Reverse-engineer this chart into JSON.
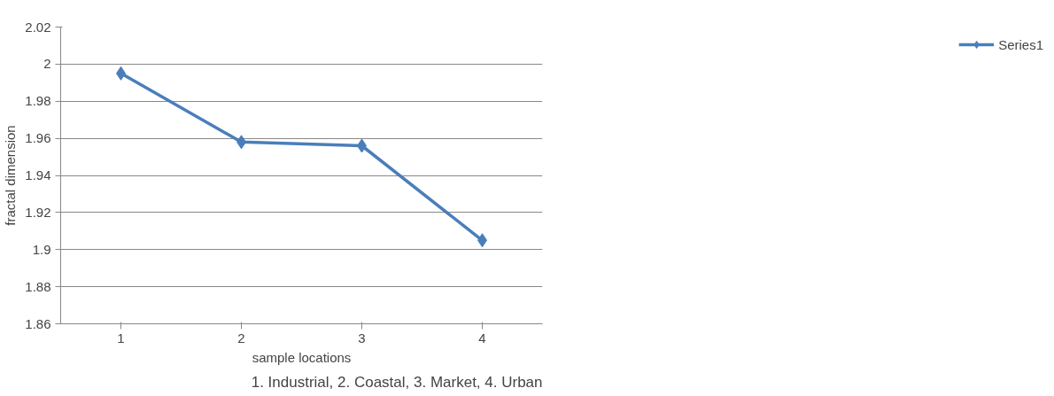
{
  "chart_data": {
    "type": "line",
    "xlabel": "sample locations",
    "ylabel": "fractal dimension",
    "categories": [
      "1",
      "2",
      "3",
      "4"
    ],
    "series": [
      {
        "name": "Series1",
        "color": "#4a7ebb",
        "values": [
          1.995,
          1.958,
          1.956,
          1.905
        ]
      }
    ],
    "ylim": [
      1.86,
      2.02
    ],
    "yticks": [
      1.86,
      1.88,
      1.9,
      1.92,
      1.94,
      1.96,
      1.98,
      2,
      2.02
    ],
    "grid": "y",
    "legend": "right",
    "marker": "diamond",
    "line_style": "solid",
    "annotations": [
      "1. Industrial, 2. Coastal, 3. Market, 4. Urban"
    ]
  }
}
